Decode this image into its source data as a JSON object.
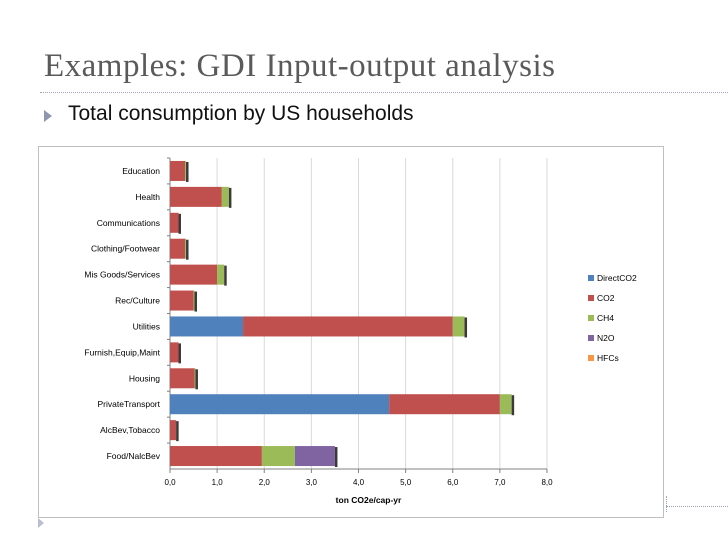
{
  "slide": {
    "title": "Examples: GDI Input-output analysis",
    "bullet": "Total consumption by US households"
  },
  "chart_data": {
    "type": "bar",
    "orientation": "horizontal",
    "stacked": true,
    "categories": [
      "Education",
      "Health",
      "Communications",
      "Clothing/Footwear",
      "Mis Goods/Services",
      "Rec/Culture",
      "Utilities",
      "Furnish,Equip,Maint",
      "Housing",
      "PrivateTransport",
      "AlcBev,Tobacco",
      "Food/NalcBev"
    ],
    "series": [
      {
        "name": "DirectCO2",
        "color": "#4f81bd",
        "values": [
          0,
          0,
          0,
          0,
          0,
          0,
          1.55,
          0,
          0,
          4.65,
          0,
          0
        ]
      },
      {
        "name": "CO2",
        "color": "#c0504d",
        "values": [
          0.32,
          1.1,
          0.18,
          0.32,
          1.0,
          0.5,
          4.45,
          0.18,
          0.52,
          2.35,
          0.13,
          1.95
        ]
      },
      {
        "name": "CH4",
        "color": "#9bbb59",
        "values": [
          0.02,
          0.15,
          0,
          0.02,
          0.15,
          0.02,
          0.25,
          0,
          0.02,
          0.25,
          0,
          0.7
        ]
      },
      {
        "name": "N2O",
        "color": "#8064a2",
        "values": [
          0,
          0,
          0,
          0,
          0,
          0,
          0,
          0,
          0,
          0,
          0,
          0.85
        ]
      },
      {
        "name": "HFCs",
        "color": "#f79646",
        "values": [
          0,
          0,
          0,
          0,
          0,
          0,
          0,
          0,
          0,
          0,
          0,
          0
        ]
      }
    ],
    "xlabel": "ton CO2e/cap-yr",
    "ylabel": "",
    "xlim": [
      0,
      8
    ],
    "xticks": [
      "0,0",
      "1,0",
      "2,0",
      "3,0",
      "4,0",
      "5,0",
      "6,0",
      "7,0",
      "8,0"
    ],
    "grid": true,
    "legend_position": "right"
  },
  "colors": {
    "title": "#5a5a5a",
    "accent": "#8e97ad"
  }
}
